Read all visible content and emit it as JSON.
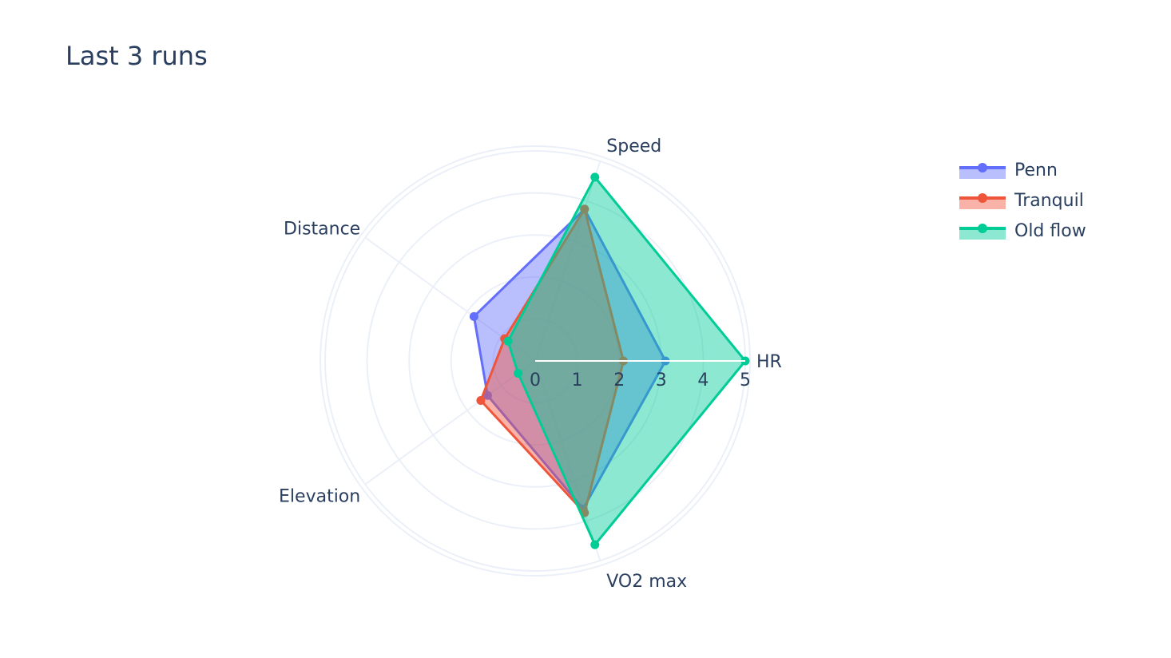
{
  "chart_data": {
    "type": "radar",
    "title": "Last 3 runs",
    "axes": [
      "HR",
      "Speed",
      "Distance",
      "Elevation",
      "VO2 max"
    ],
    "radial_range": [
      0,
      5
    ],
    "radial_ticks": [
      "0",
      "1",
      "2",
      "3",
      "4",
      "5"
    ],
    "legend_position": "top-right",
    "series": [
      {
        "name": "Penn",
        "color": "#636efa",
        "values": [
          3.1,
          3.8,
          1.8,
          1.4,
          3.7
        ]
      },
      {
        "name": "Tranquil",
        "color": "#ef553b",
        "values": [
          2.1,
          3.8,
          0.9,
          1.6,
          3.8
        ]
      },
      {
        "name": "Old flow",
        "color": "#00cc96",
        "values": [
          5.0,
          4.6,
          0.8,
          0.5,
          4.6
        ]
      }
    ]
  }
}
